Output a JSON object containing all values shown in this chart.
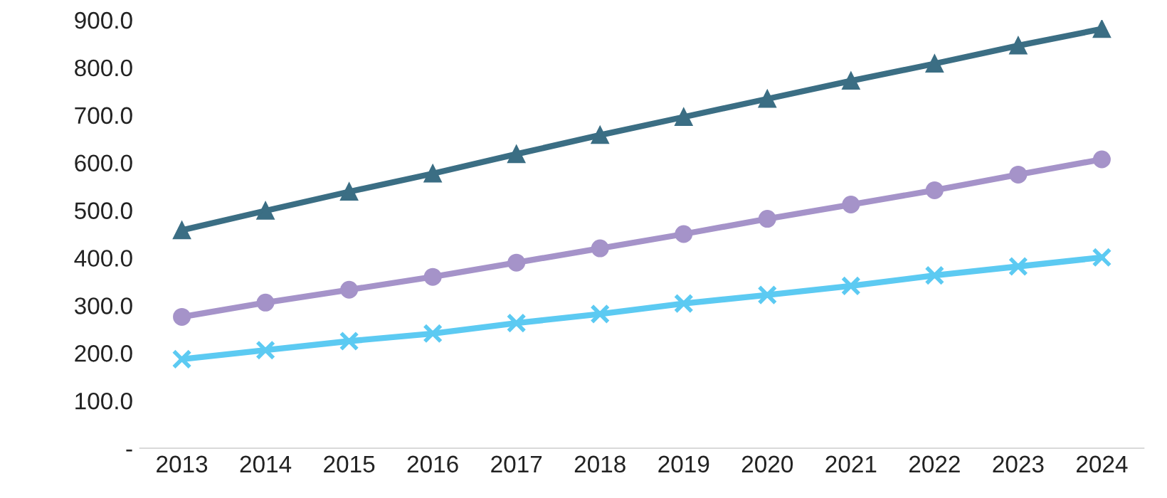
{
  "chart_data": {
    "type": "line",
    "categories": [
      "2013",
      "2014",
      "2015",
      "2016",
      "2017",
      "2018",
      "2019",
      "2020",
      "2021",
      "2022",
      "2023",
      "2024"
    ],
    "series": [
      {
        "color": "#3b6e84",
        "marker": "triangle",
        "values": [
          458,
          499,
          539,
          577,
          618,
          658,
          696,
          734,
          772,
          808,
          846,
          881
        ]
      },
      {
        "color": "#a593c9",
        "marker": "circle",
        "values": [
          276,
          306,
          333,
          360,
          390,
          420,
          450,
          482,
          512,
          542,
          575,
          607
        ]
      },
      {
        "color": "#5ccaf2",
        "marker": "cross",
        "values": [
          187,
          206,
          225,
          241,
          263,
          282,
          304,
          322,
          341,
          363,
          382,
          401
        ]
      }
    ],
    "ylim": [
      0,
      900
    ],
    "yticks": [
      {
        "value": 0,
        "label": "-"
      },
      {
        "value": 100,
        "label": "100.0"
      },
      {
        "value": 200,
        "label": "200.0"
      },
      {
        "value": 300,
        "label": "300.0"
      },
      {
        "value": 400,
        "label": "400.0"
      },
      {
        "value": 500,
        "label": "500.0"
      },
      {
        "value": 600,
        "label": "600.0"
      },
      {
        "value": 700,
        "label": "700.0"
      },
      {
        "value": 800,
        "label": "800.0"
      },
      {
        "value": 900,
        "label": "900.0"
      }
    ],
    "grid": false,
    "legend": false,
    "line_style": "solid"
  }
}
